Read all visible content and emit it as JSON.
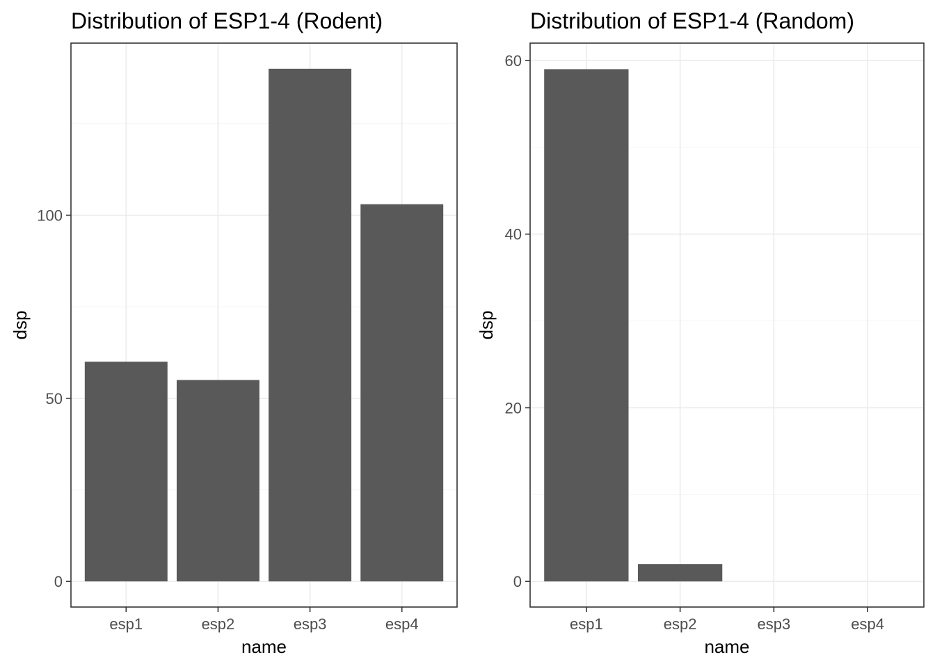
{
  "chart_data": [
    {
      "type": "bar",
      "title": "Distribution of ESP1-4 (Rodent)",
      "xlabel": "name",
      "ylabel": "dsp",
      "categories": [
        "esp1",
        "esp2",
        "esp3",
        "esp4"
      ],
      "values": [
        60,
        55,
        140,
        103
      ],
      "ylim": [
        -7,
        147
      ],
      "y_major_ticks": [
        0,
        50,
        100
      ],
      "y_tick_labels": [
        "0",
        "50",
        "100"
      ],
      "y_minor_ticks": [
        25,
        75,
        125
      ],
      "grid": true,
      "bar_color": "#595959"
    },
    {
      "type": "bar",
      "title": "Distribution of ESP1-4 (Random)",
      "xlabel": "name",
      "ylabel": "dsp",
      "categories": [
        "esp1",
        "esp2",
        "esp3",
        "esp4"
      ],
      "values": [
        59,
        2,
        0,
        0
      ],
      "ylim": [
        -2.95,
        62
      ],
      "y_major_ticks": [
        0,
        20,
        40,
        60
      ],
      "y_tick_labels": [
        "0",
        "20",
        "40",
        "60"
      ],
      "y_minor_ticks": [
        10,
        30,
        50
      ],
      "grid": true,
      "bar_color": "#595959"
    }
  ]
}
